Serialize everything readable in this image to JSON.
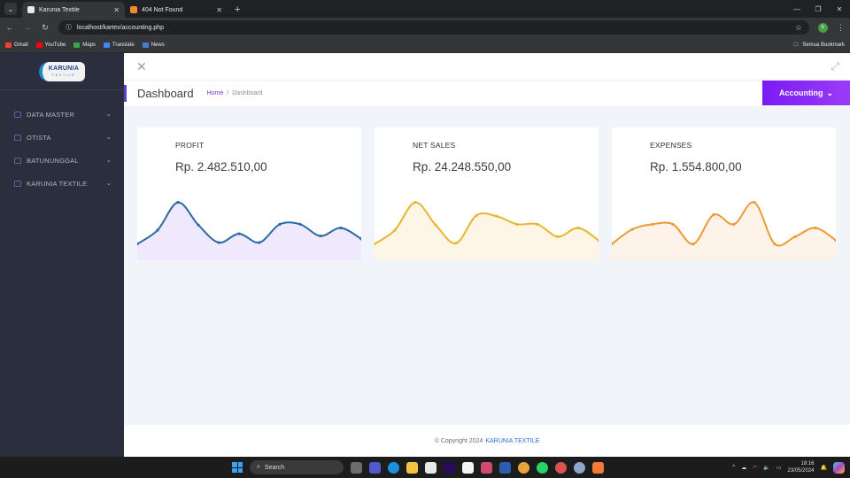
{
  "browser": {
    "tabs": [
      {
        "title": "Karunia Textile",
        "active": true,
        "favicon_color": "#e8eaed"
      },
      {
        "title": "404 Not Found",
        "active": false,
        "favicon_color": "#f58a2c"
      }
    ],
    "new_tab_label": "+",
    "url": "localhost/kartex/accounting.php",
    "profile_initial": "k",
    "bookmarks": [
      {
        "label": "Gmail",
        "color": "#ea4335"
      },
      {
        "label": "YouTube",
        "color": "#ff0000"
      },
      {
        "label": "Maps",
        "color": "#34a853"
      },
      {
        "label": "Translate",
        "color": "#4285f4"
      },
      {
        "label": "News",
        "color": "#4a7bd9"
      }
    ],
    "all_bookmarks_label": "Semua Bookmark"
  },
  "sidebar": {
    "logo_line1": "KARUNIA",
    "logo_line2": "TEXTILE",
    "items": [
      {
        "label": "DATA MASTER"
      },
      {
        "label": "OTISTA"
      },
      {
        "label": "BATUNUNGGAL"
      },
      {
        "label": "KARUNIA TEXTILE"
      }
    ]
  },
  "header": {
    "page_title": "Dashboard",
    "breadcrumb": {
      "home": "Home",
      "separator": "/",
      "current": "Dashboard"
    },
    "accounting_button": "Accounting"
  },
  "cards": [
    {
      "title": "PROFIT",
      "value": "Rp. 2.482.510,00",
      "line_color": "#2a6aa6",
      "fill_color": "#f0e8fd"
    },
    {
      "title": "NET SALES",
      "value": "Rp. 24.248.550,00",
      "line_color": "#e8b52e",
      "fill_color": "#fdf6e7"
    },
    {
      "title": "EXPENSES",
      "value": "Rp. 1.554.800,00",
      "line_color": "#ec9a35",
      "fill_color": "#fdf3e8"
    }
  ],
  "chart_data": [
    {
      "type": "area",
      "title": "PROFIT",
      "x": [
        1,
        2,
        3,
        4,
        5,
        6,
        7,
        8,
        9,
        10,
        11,
        12
      ],
      "values": [
        15,
        34,
        72,
        41,
        17,
        29,
        17,
        42,
        42,
        26,
        37,
        22
      ],
      "ylim": [
        0,
        80
      ],
      "grid": false,
      "legend": "none"
    },
    {
      "type": "area",
      "title": "NET SALES",
      "x": [
        1,
        2,
        3,
        4,
        5,
        6,
        7,
        8,
        9,
        10,
        11,
        12
      ],
      "values": [
        15,
        34,
        72,
        41,
        16,
        54,
        53,
        42,
        42,
        25,
        37,
        20
      ],
      "ylim": [
        0,
        80
      ],
      "grid": false,
      "legend": "none"
    },
    {
      "type": "area",
      "title": "EXPENSES",
      "x": [
        1,
        2,
        3,
        4,
        5,
        6,
        7,
        8,
        9,
        10,
        11,
        12
      ],
      "values": [
        15,
        35,
        42,
        42,
        15,
        55,
        42,
        72,
        15,
        25,
        37,
        20
      ],
      "ylim": [
        0,
        80
      ],
      "grid": false,
      "legend": "none"
    }
  ],
  "footer": {
    "copyright": "© Copyright 2024",
    "brand": "KARUNIA TEXTILE",
    "suffix": "."
  },
  "taskbar": {
    "search_placeholder": "Search",
    "time": "18:16",
    "date": "23/05/2024",
    "apps": [
      "task-view",
      "teams",
      "edge",
      "file-explorer",
      "store",
      "premiere",
      "notepad",
      "snipping-tool",
      "word",
      "chrome",
      "whatsapp",
      "chrome-profile",
      "settings",
      "xampp"
    ]
  }
}
